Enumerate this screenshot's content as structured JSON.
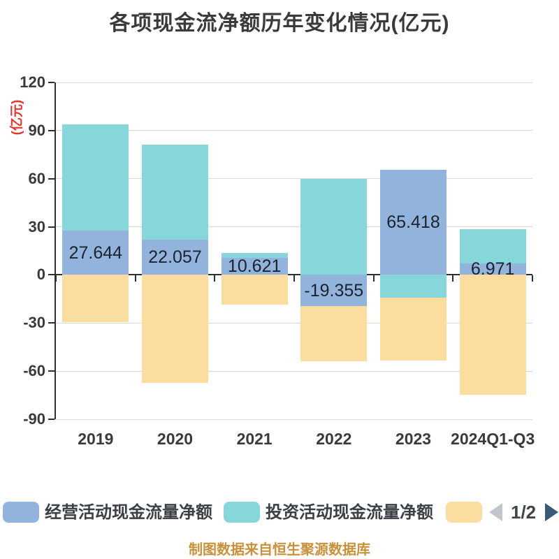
{
  "chart_data": {
    "type": "bar",
    "stacked": true,
    "title": "各项现金流净额历年变化情况(亿元)",
    "ylabel": "(亿元)",
    "xlabel": "",
    "categories": [
      "2019",
      "2020",
      "2021",
      "2022",
      "2023",
      "2024Q1-Q3"
    ],
    "series": [
      {
        "name": "经营活动现金流量净额",
        "color": "#92b4dc",
        "values": [
          27.644,
          22.057,
          10.621,
          -19.355,
          65.418,
          6.971
        ]
      },
      {
        "name": "投资活动现金流量净额",
        "color": "#87d6d9",
        "values": [
          66.4,
          59.0,
          3.1,
          60.0,
          -14.0,
          21.5
        ],
        "note": "estimated from pixels"
      },
      {
        "name": "",
        "color": "#fbdda0",
        "values": [
          -29.5,
          -67.5,
          -18.5,
          -34.6,
          -39.5,
          -74.8
        ],
        "note": "estimated from pixels; legend label hidden on page 1/2"
      }
    ],
    "data_labels": {
      "series_index": 0,
      "texts": [
        "27.644",
        "22.057",
        "10.621",
        "-19.355",
        "65.418",
        "6.971"
      ]
    },
    "yticks": [
      120,
      90,
      60,
      30,
      0,
      -30,
      -60,
      -90
    ],
    "ylim": [
      -90,
      120
    ],
    "grid": true,
    "legend_position": "bottom",
    "colors": {
      "grid": "#d8d8d0",
      "axis": "#2f2f2f",
      "tick_text": "#3a3a3a",
      "bar_label_text": "#1c2230",
      "y_unit_text": "#e1392d"
    }
  },
  "legend": {
    "items": [
      {
        "label": "经营活动现金流量净额",
        "color": "#92b4dc"
      },
      {
        "label": "投资活动现金流量净额",
        "color": "#87d6d9"
      },
      {
        "label": "",
        "color": "#fbdda0"
      }
    ],
    "pager": {
      "text": "1/2",
      "prev_color": "#c3c7cb",
      "next_color": "#3b5a78"
    }
  },
  "footer": "制图数据来自恒生聚源数据库"
}
